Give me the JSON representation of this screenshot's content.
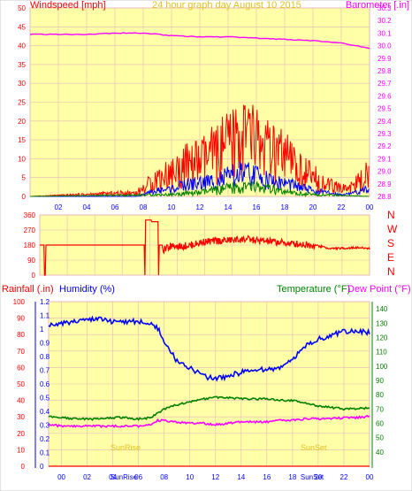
{
  "colors": {
    "page_bg": "#ffffff",
    "plot_bg": "#ffffa8",
    "grid": "#e6b8b8",
    "red": "#ff0000",
    "blue": "#0000ff",
    "green": "#008000",
    "magenta": "#ff00ff",
    "amber": "#e0c020",
    "rain_axis": "#0000ff",
    "temp_axis": "#008000"
  },
  "chart_data": [
    {
      "type": "line",
      "title": "24 hour graph day    August 10 2015",
      "ylabel_left": "Windspeed [mph]",
      "ylabel_right": "Barometer [.in]",
      "x_ticks": [
        "02",
        "04",
        "06",
        "08",
        "10",
        "12",
        "14",
        "16",
        "18",
        "20",
        "22",
        "00"
      ],
      "xlim": [
        0,
        24
      ],
      "ylim_left": [
        0,
        50
      ],
      "y_ticks_left": [
        0,
        5,
        10,
        15,
        20,
        25,
        30,
        35,
        40,
        45,
        50
      ],
      "ylim_right": [
        28.8,
        30.3
      ],
      "y_ticks_right": [
        28.8,
        28.9,
        29.0,
        29.1,
        29.2,
        29.3,
        29.4,
        29.5,
        29.6,
        29.7,
        29.8,
        29.9,
        30.0,
        30.1,
        30.2,
        30.3
      ],
      "grid": true,
      "series": [
        {
          "role": "barometer",
          "axis": "right",
          "color": "#ff00ff",
          "x": [
            0,
            2,
            4,
            6,
            8,
            10,
            12,
            14,
            16,
            18,
            20,
            21,
            22,
            23,
            24
          ],
          "y": [
            30.09,
            30.09,
            30.09,
            30.1,
            30.1,
            30.08,
            30.07,
            30.07,
            30.06,
            30.05,
            30.04,
            30.03,
            30.02,
            30.0,
            29.98
          ]
        },
        {
          "role": "wind-gust",
          "axis": "left",
          "color": "#ff0000",
          "x": [
            0,
            7.5,
            8,
            9,
            10,
            11,
            12,
            13,
            14,
            15,
            16,
            17,
            18,
            19,
            20,
            21,
            22,
            23,
            24
          ],
          "y": [
            0,
            1,
            2,
            5,
            6,
            8,
            9,
            11,
            13,
            16,
            15,
            11,
            10,
            7,
            5,
            3,
            2,
            3,
            6
          ]
        },
        {
          "role": "wind-avg",
          "axis": "left",
          "color": "#0000ff",
          "x": [
            0,
            7.5,
            8,
            9,
            10,
            11,
            12,
            13,
            14,
            15,
            16,
            17,
            18,
            19,
            20,
            21,
            22,
            23,
            24
          ],
          "y": [
            0,
            0,
            0.5,
            1.5,
            2,
            3,
            3.5,
            4,
            5,
            6,
            5.5,
            4,
            3.5,
            2.5,
            1.5,
            1,
            0.5,
            1,
            2
          ]
        },
        {
          "role": "wind-calm",
          "axis": "left",
          "color": "#008000",
          "x": [
            0,
            10,
            12,
            14,
            16,
            18,
            20,
            24
          ],
          "y": [
            0,
            0.5,
            1,
            2,
            2.5,
            1,
            0.5,
            0
          ]
        }
      ]
    },
    {
      "type": "line",
      "y_ticks": [
        0,
        90,
        180,
        270,
        360
      ],
      "ylim": [
        0,
        360
      ],
      "direction_labels": [
        "N",
        "W",
        "S",
        "E",
        "N"
      ],
      "xlim": [
        0,
        24
      ],
      "grid": true,
      "series": [
        {
          "role": "wind-direction",
          "color": "#ff0000",
          "x": [
            0,
            0.3,
            0.35,
            0.4,
            0.45,
            7.6,
            7.65,
            7.7,
            8.1,
            8.15,
            8.6,
            8.65,
            8.7,
            8.9,
            9.0,
            9.5,
            10,
            11,
            12,
            13,
            14,
            15,
            16,
            17,
            18,
            19,
            20,
            20.5,
            21,
            22,
            23,
            24
          ],
          "y": [
            180,
            180,
            0,
            0,
            180,
            180,
            0,
            330,
            330,
            320,
            320,
            0,
            180,
            180,
            150,
            170,
            170,
            180,
            200,
            205,
            210,
            215,
            205,
            200,
            190,
            185,
            180,
            170,
            160,
            160,
            165,
            160
          ]
        }
      ]
    },
    {
      "type": "line",
      "ylabel_rain": "Rainfall (.in)",
      "ylabel_humidity": "Humidity (%)",
      "ylabel_temp": "Temperature (°F)",
      "ylabel_dew": "Dew Point (°F)",
      "x_ticks": [
        "00",
        "02",
        "04",
        "06",
        "08",
        "10",
        "12",
        "14",
        "16",
        "18",
        "20",
        "22",
        "00"
      ],
      "xlim": [
        -1,
        24
      ],
      "rain_ticks": [
        "0",
        "0.1",
        "0.2",
        "0.3",
        "0.4",
        "0.5",
        "0.6",
        "0.7",
        "0.8",
        "0.9",
        "1",
        "1.1",
        "1.2"
      ],
      "ylim_rain": [
        0,
        1.2
      ],
      "humidity_ticks": [
        0,
        10,
        20,
        30,
        40,
        50,
        60,
        70,
        80,
        90,
        100
      ],
      "ylim_humidity": [
        0,
        100
      ],
      "temp_ticks": [
        40,
        50,
        60,
        70,
        80,
        90,
        100,
        110,
        120,
        130,
        140
      ],
      "ylim_temp": [
        30,
        145
      ],
      "sun_labels": {
        "sunrise_main": "SunRise",
        "sunset_main": "SunSet",
        "sunrise_ghost": "SunRise",
        "sunset_ghost": "SunSet"
      },
      "grid": true,
      "series": [
        {
          "role": "humidity",
          "axis": "humidity",
          "color": "#0000ff",
          "x": [
            -1,
            0,
            1,
            2,
            3,
            4,
            5,
            6,
            6.5,
            7,
            7.5,
            8,
            9,
            10,
            11,
            12,
            13,
            14,
            15,
            16,
            17,
            18,
            19,
            20,
            21,
            22,
            23,
            24
          ],
          "y": [
            85,
            87,
            88,
            89,
            89,
            88,
            88,
            88,
            88,
            87,
            84,
            75,
            64,
            60,
            55,
            53,
            55,
            57,
            58,
            59,
            60,
            65,
            73,
            77,
            80,
            82,
            82,
            81
          ]
        },
        {
          "role": "temperature",
          "axis": "temp",
          "color": "#008000",
          "x": [
            -1,
            0,
            1,
            2,
            3,
            4,
            5,
            6,
            7,
            8,
            9,
            10,
            11,
            12,
            13,
            14,
            15,
            16,
            17,
            18,
            19,
            20,
            21,
            22,
            23,
            24
          ],
          "y": [
            65,
            64,
            63,
            63,
            63,
            64,
            64,
            63,
            64,
            70,
            73,
            75,
            77,
            78,
            78,
            77,
            77,
            77,
            76,
            76,
            74,
            72,
            71,
            70,
            70,
            71
          ]
        },
        {
          "role": "dew-point",
          "axis": "temp",
          "color": "#ff00ff",
          "x": [
            -1,
            0,
            1,
            2,
            3,
            4,
            5,
            6,
            7,
            7.5,
            8,
            9,
            10,
            11,
            12,
            13,
            14,
            15,
            16,
            17,
            18,
            19,
            20,
            21,
            22,
            23,
            24
          ],
          "y": [
            59,
            58,
            58,
            58,
            58,
            58,
            58,
            58,
            59,
            62,
            62,
            61,
            60,
            60,
            59,
            60,
            61,
            61,
            61,
            62,
            62,
            63,
            63,
            63,
            64,
            64,
            65
          ]
        },
        {
          "role": "rainfall",
          "axis": "rain",
          "color": "#ff0000",
          "x": [
            -1,
            24
          ],
          "y": [
            0,
            0
          ]
        }
      ]
    }
  ]
}
